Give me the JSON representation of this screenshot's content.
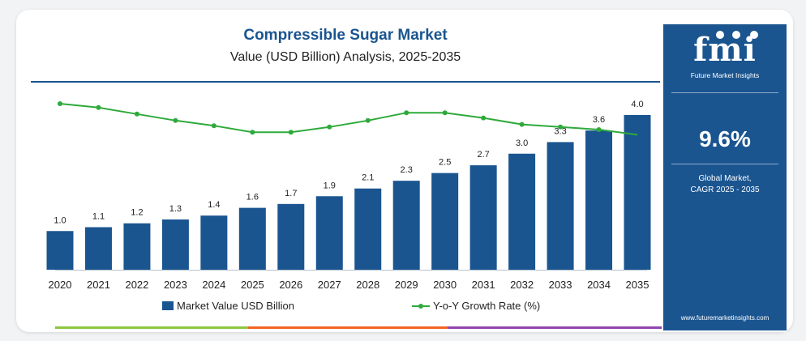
{
  "chart_data": {
    "type": "bar",
    "title": "Compressible Sugar Market",
    "subtitle": "Value (USD Billion) Analysis, 2025-2035",
    "categories": [
      "2020",
      "2021",
      "2022",
      "2023",
      "2024",
      "2025",
      "2026",
      "2027",
      "2028",
      "2029",
      "2030",
      "2031",
      "2032",
      "2033",
      "2034",
      "2035"
    ],
    "series": [
      {
        "name": "Market Value USD Billion",
        "type": "bar",
        "color": "#1a5590",
        "values": [
          1.0,
          1.1,
          1.2,
          1.3,
          1.4,
          1.6,
          1.7,
          1.9,
          2.1,
          2.3,
          2.5,
          2.7,
          3.0,
          3.3,
          3.6,
          4.0
        ],
        "labels": [
          "1.0",
          "1.1",
          "1.2",
          "1.3",
          "1.4",
          "1.6",
          "1.7",
          "1.9",
          "2.1",
          "2.3",
          "2.5",
          "2.7",
          "3.0",
          "3.3",
          "3.6",
          "4.0"
        ]
      },
      {
        "name": "Y-o-Y Growth Rate (%)",
        "type": "line",
        "color": "#2eaa3b",
        "values": [
          9.0,
          8.7,
          8.2,
          7.7,
          7.3,
          6.8,
          6.8,
          7.2,
          7.7,
          8.3,
          8.3,
          7.9,
          7.4,
          7.2,
          7.0,
          6.6
        ]
      }
    ],
    "ylim": [
      0,
      4.4
    ],
    "growth_ylim": [
      0,
      10.5
    ],
    "grid": false,
    "legend_position": "bottom"
  },
  "sidebar": {
    "logo": "fmi",
    "logo_subtitle": "Future Market Insights",
    "cagr_value": "9.6%",
    "cagr_label_line1": "Global Market,",
    "cagr_label_line2": "CAGR 2025 - 2035",
    "website": "www.futuremarketinsights.com"
  },
  "colors": {
    "brand_blue": "#1a5590",
    "growth_green": "#2eaa3b",
    "stripe_green": "#8cc63f",
    "stripe_orange": "#f26522",
    "stripe_purple": "#8e44ad"
  }
}
